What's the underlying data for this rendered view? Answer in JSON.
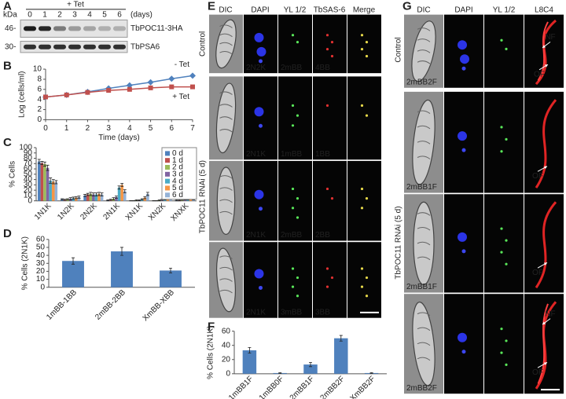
{
  "panel_labels": [
    "A",
    "B",
    "C",
    "D",
    "E",
    "F",
    "G"
  ],
  "blot": {
    "header": "+ Tet",
    "kda": "kDa",
    "lanes": [
      "0",
      "1",
      "2",
      "3",
      "4",
      "5",
      "6"
    ],
    "unit": "(days)",
    "markers": [
      "46-",
      "30-"
    ],
    "bands": [
      "TbPOC11-3HA",
      "TbPSA6"
    ]
  },
  "chart_data": [
    {
      "type": "line",
      "y_label": "Log (cells/ml)",
      "x_label": "Time (days)",
      "x": [
        0,
        1,
        2,
        3,
        4,
        5,
        6,
        7
      ],
      "xlim": [
        0,
        7
      ],
      "xticks": [
        0,
        1,
        2,
        3,
        4,
        5,
        6,
        7
      ],
      "ylim": [
        0,
        10
      ],
      "yticks": [
        0,
        2,
        4,
        6,
        8,
        10
      ],
      "series": [
        {
          "name": "- Tet",
          "color": "#4f81bd",
          "marker": "diamond",
          "values": [
            4.5,
            4.9,
            5.5,
            6.2,
            6.8,
            7.4,
            8.1,
            8.7
          ]
        },
        {
          "name": "+ Tet",
          "color": "#c0504d",
          "marker": "square",
          "values": [
            4.5,
            4.9,
            5.4,
            5.8,
            6.0,
            6.3,
            6.5,
            6.5
          ]
        }
      ]
    },
    {
      "type": "bar",
      "y_label": "% Cells",
      "categories": [
        "1N1K",
        "1N2K",
        "2N2K",
        "2N1K",
        "XN1K",
        "XN2K",
        "XNXK"
      ],
      "ylim": [
        0,
        100
      ],
      "yticks": [
        0,
        10,
        20,
        30,
        40,
        50,
        60,
        70,
        80,
        90,
        100
      ],
      "legend": "top-right",
      "series": [
        {
          "name": "0 d",
          "color": "#4f81bd",
          "values": [
            74,
            3,
            10,
            1,
            0,
            0,
            1
          ],
          "errors": [
            4,
            1,
            2,
            1,
            0.5,
            0.5,
            1
          ]
        },
        {
          "name": "1 d",
          "color": "#c0504d",
          "values": [
            71,
            2,
            12,
            2,
            0,
            0,
            1
          ],
          "errors": [
            3,
            1,
            2,
            1,
            0.5,
            0.5,
            1
          ]
        },
        {
          "name": "2 d",
          "color": "#9bbb59",
          "values": [
            69,
            3,
            13,
            4,
            1,
            1,
            2
          ],
          "errors": [
            4,
            1,
            3,
            2,
            1,
            1,
            1
          ]
        },
        {
          "name": "3 d",
          "color": "#8064a2",
          "values": [
            62,
            4,
            12,
            7,
            1,
            2,
            3
          ],
          "errors": [
            5,
            2,
            3,
            2,
            1,
            1,
            1
          ]
        },
        {
          "name": "4 d",
          "color": "#4bacc6",
          "values": [
            38,
            5,
            12,
            25,
            3,
            3,
            3
          ],
          "errors": [
            5,
            2,
            3,
            3,
            1,
            1,
            1
          ]
        },
        {
          "name": "5 d",
          "color": "#f79646",
          "values": [
            36,
            6,
            13,
            30,
            6,
            5,
            5
          ],
          "errors": [
            4,
            2,
            3,
            3,
            2,
            2,
            2
          ]
        },
        {
          "name": "6 d",
          "color": "#95b3d7",
          "values": [
            35,
            7,
            12,
            18,
            13,
            7,
            4
          ],
          "errors": [
            3,
            2,
            3,
            3,
            3,
            2,
            2
          ]
        }
      ]
    },
    {
      "type": "bar",
      "y_label": "% Cells (2N1K)",
      "categories": [
        "1mBB-1BB",
        "2mBB-2BB",
        "XmBB-XBB"
      ],
      "values": [
        33,
        45,
        21
      ],
      "errors": [
        4,
        5,
        3
      ],
      "color": "#4f81bd",
      "ylim": [
        0,
        60
      ],
      "yticks": [
        0,
        10,
        20,
        30,
        40,
        50,
        60
      ]
    },
    {
      "type": "bar",
      "y_label": "% Cells (2N1K)",
      "categories": [
        "1mBB1F",
        "1mBB0F",
        "2mBB1F",
        "2mBB2F",
        "XmBB2F"
      ],
      "values": [
        33,
        1,
        13,
        50,
        1
      ],
      "errors": [
        4,
        0.5,
        3,
        4,
        0.5
      ],
      "color": "#4f81bd",
      "ylim": [
        0,
        60
      ],
      "yticks": [
        0,
        20,
        40,
        60
      ]
    }
  ],
  "micrographs_e": {
    "columns": [
      "DIC",
      "DAPI",
      "YL 1/2",
      "TbSAS-6",
      "Merge"
    ],
    "row_groups": [
      "Control",
      "TbPOC11 RNAi (5 d)"
    ],
    "rows": [
      [
        "2N2K",
        "2mBB",
        "4BB"
      ],
      [
        "2N1K",
        "1mBB",
        "1BB"
      ],
      [
        "2N1K",
        "2mBB",
        "2BB"
      ],
      [
        "2N1K",
        "3mBB",
        "3BB"
      ]
    ]
  },
  "micrographs_g": {
    "columns": [
      "DIC",
      "DAPI",
      "YL 1/2",
      "L8C4"
    ],
    "row_groups": [
      "Control",
      "TbPOC11 RNAi (5 d)"
    ],
    "rows": [
      {
        "label": "2mBB2F",
        "annotations": [
          "NF",
          "OF"
        ]
      },
      {
        "label": "2mBB1F",
        "annotations": [
          "OF"
        ]
      },
      {
        "label": "2mBB1F",
        "annotations": [
          "OF"
        ]
      },
      {
        "label": "2mBB2F",
        "annotations": [
          "NF",
          "OF"
        ]
      }
    ]
  }
}
